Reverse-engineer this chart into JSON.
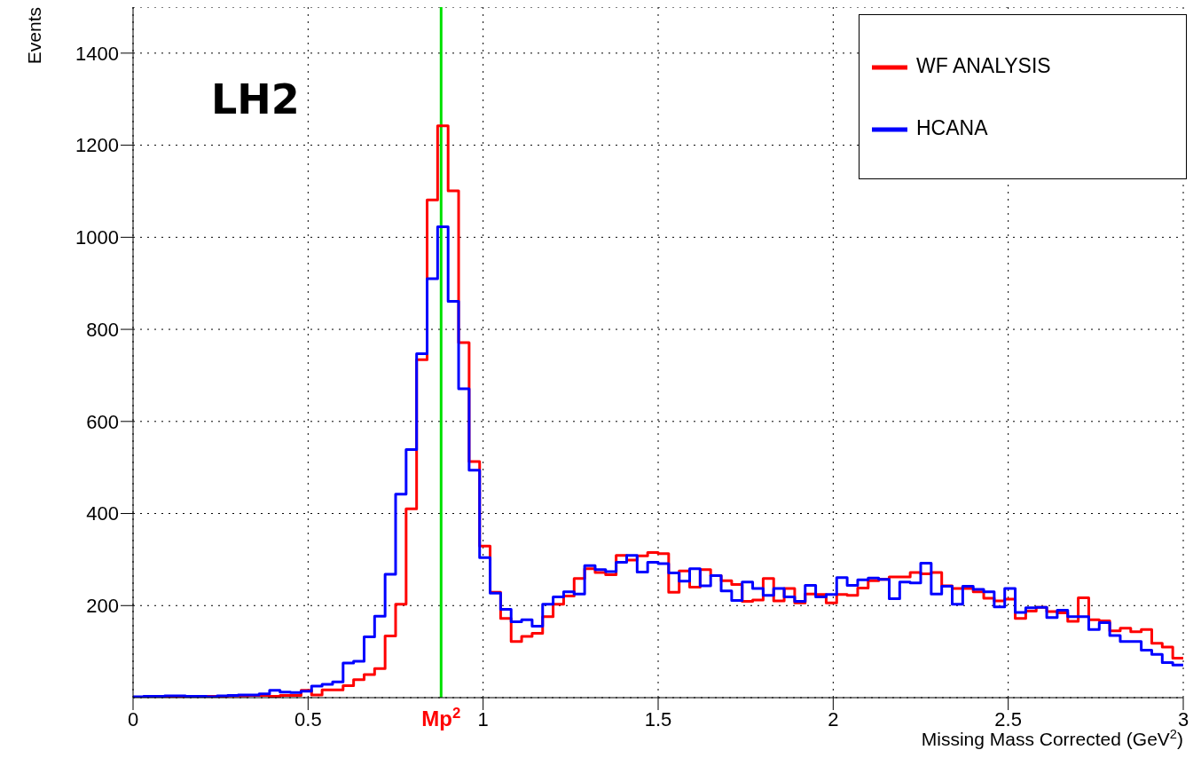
{
  "chart_data": {
    "type": "histogram",
    "xlabel": "Missing Mass Corrected (GeV$^{2}$)",
    "ylabel": "Events",
    "bins": [
      0,
      0.03,
      0.06,
      0.09,
      0.12,
      0.15,
      0.18,
      0.21,
      0.24,
      0.27,
      0.3,
      0.33,
      0.36,
      0.39,
      0.42,
      0.45,
      0.48,
      0.51,
      0.54,
      0.57,
      0.6,
      0.63,
      0.66,
      0.69,
      0.72,
      0.75,
      0.78,
      0.81,
      0.84,
      0.87,
      0.9,
      0.93,
      0.96,
      0.99,
      1.02,
      1.05,
      1.08,
      1.11,
      1.14,
      1.17,
      1.2,
      1.23,
      1.26,
      1.29,
      1.32,
      1.35,
      1.38,
      1.41,
      1.44,
      1.47,
      1.5,
      1.53,
      1.56,
      1.59,
      1.62,
      1.65,
      1.68,
      1.71,
      1.74,
      1.77,
      1.8,
      1.83,
      1.86,
      1.89,
      1.92,
      1.95,
      1.98,
      2.01,
      2.04,
      2.07,
      2.1,
      2.13,
      2.16,
      2.19,
      2.22,
      2.25,
      2.28,
      2.31,
      2.34,
      2.37,
      2.4,
      2.43,
      2.46,
      2.49,
      2.52,
      2.55,
      2.58,
      2.61,
      2.64,
      2.67,
      2.7,
      2.73,
      2.76,
      2.79,
      2.82,
      2.85,
      2.88,
      2.91,
      2.94,
      2.97,
      3
    ],
    "series": [
      {
        "name": "WF ANALYSIS",
        "color": "#ff0000",
        "values": [
          1,
          2,
          2,
          2,
          2,
          2,
          3,
          3,
          3,
          4,
          4,
          5,
          5,
          3,
          5,
          5,
          16,
          6,
          17,
          17,
          26,
          39,
          50,
          63,
          134,
          203,
          410,
          734,
          1081,
          1242,
          1101,
          771,
          513,
          329,
          229,
          172,
          122,
          133,
          140,
          176,
          203,
          221,
          259,
          280,
          272,
          267,
          309,
          299,
          308,
          315,
          313,
          229,
          275,
          240,
          278,
          265,
          254,
          246,
          209,
          212,
          259,
          210,
          237,
          206,
          225,
          224,
          206,
          224,
          222,
          238,
          254,
          257,
          262,
          262,
          272,
          269,
          272,
          243,
          237,
          237,
          230,
          216,
          210,
          214,
          172,
          188,
          196,
          187,
          184,
          166,
          217,
          169,
          167,
          145,
          151,
          143,
          148,
          118,
          110,
          86
        ]
      },
      {
        "name": "HCANA",
        "color": "#0000ff",
        "values": [
          2,
          3,
          3,
          4,
          4,
          3,
          3,
          2,
          4,
          5,
          6,
          6,
          8,
          16,
          12,
          11,
          14,
          25,
          29,
          34,
          75,
          79,
          132,
          177,
          268,
          442,
          539,
          747,
          910,
          1023,
          861,
          671,
          494,
          304,
          227,
          192,
          165,
          169,
          155,
          203,
          219,
          230,
          225,
          287,
          278,
          274,
          294,
          309,
          273,
          294,
          291,
          271,
          253,
          280,
          243,
          265,
          232,
          211,
          251,
          237,
          222,
          237,
          219,
          209,
          244,
          219,
          224,
          261,
          244,
          256,
          260,
          257,
          215,
          251,
          249,
          292,
          225,
          242,
          203,
          242,
          235,
          230,
          197,
          237,
          185,
          195,
          196,
          174,
          190,
          176,
          176,
          148,
          163,
          135,
          122,
          122,
          103,
          94,
          76,
          71
        ]
      }
    ],
    "xlim": [
      0,
      3
    ],
    "xticks": [
      0,
      0.5,
      1,
      1.5,
      2,
      2.5,
      3
    ],
    "ylim": [
      0,
      1500
    ],
    "yticks": [
      200,
      400,
      600,
      800,
      1000,
      1200,
      1400
    ],
    "ref_lines": [
      {
        "axis": "x",
        "value": 0.88,
        "label": "Mp$^{2}$",
        "color": "#00e000"
      }
    ],
    "annotations": [
      "LH2"
    ],
    "grid": true,
    "legend": "top right",
    "line_style": "solid"
  }
}
